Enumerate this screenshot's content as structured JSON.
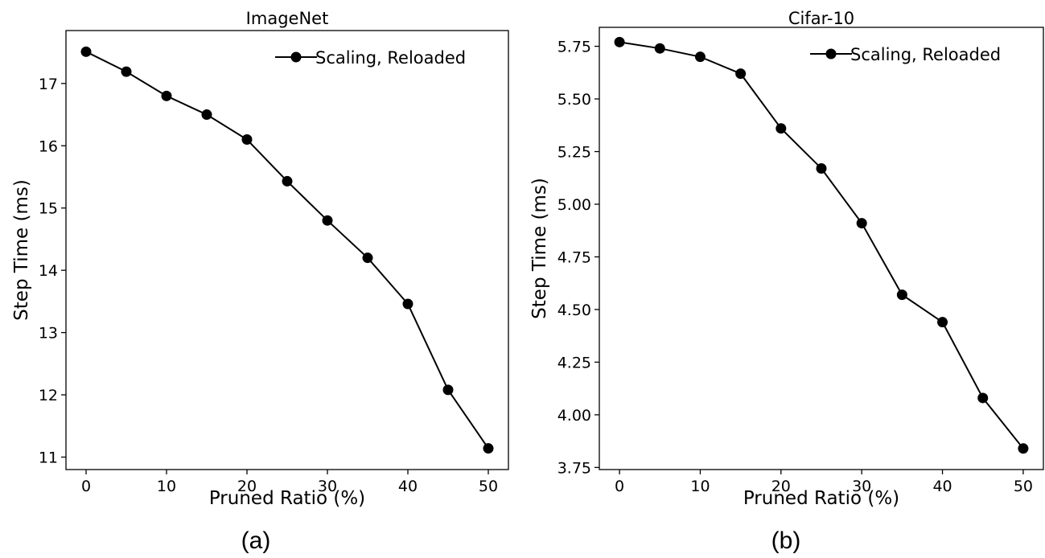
{
  "chart_data": [
    {
      "type": "line",
      "title": "ImageNet",
      "caption": "(a)",
      "xlabel": "Pruned Ratio (%)",
      "ylabel": "Step Time (ms)",
      "xlim": [
        -2.5,
        52.5
      ],
      "ylim": [
        10.8,
        17.85
      ],
      "xticks": [
        0,
        10,
        20,
        30,
        40,
        50
      ],
      "yticks": [
        11,
        12,
        13,
        14,
        15,
        16,
        17
      ],
      "ytick_labels": [
        "11",
        "12",
        "13",
        "14",
        "15",
        "16",
        "17"
      ],
      "legend_position": "top-right",
      "series": [
        {
          "name": "Scaling, Reloaded",
          "color": "#000000",
          "marker": "circle",
          "x": [
            0,
            5,
            10,
            15,
            20,
            25,
            30,
            35,
            40,
            45,
            50
          ],
          "values": [
            17.51,
            17.19,
            16.8,
            16.5,
            16.1,
            15.43,
            14.8,
            14.2,
            13.46,
            12.08,
            11.14
          ]
        }
      ]
    },
    {
      "type": "line",
      "title": "Cifar-10",
      "caption": "(b)",
      "xlabel": "Pruned Ratio (%)",
      "ylabel": "Step Time (ms)",
      "xlim": [
        -2.5,
        52.5
      ],
      "ylim": [
        3.74,
        5.84
      ],
      "xticks": [
        0,
        10,
        20,
        30,
        40,
        50
      ],
      "yticks": [
        3.75,
        4.0,
        4.25,
        4.5,
        4.75,
        5.0,
        5.25,
        5.5,
        5.75
      ],
      "ytick_labels": [
        "3.75",
        "4.00",
        "4.25",
        "4.50",
        "4.75",
        "5.00",
        "5.25",
        "5.50",
        "5.75"
      ],
      "legend_position": "top-right",
      "series": [
        {
          "name": "Scaling, Reloaded",
          "color": "#000000",
          "marker": "circle",
          "x": [
            0,
            5,
            10,
            15,
            20,
            25,
            30,
            35,
            40,
            45,
            50
          ],
          "values": [
            5.77,
            5.74,
            5.7,
            5.62,
            5.36,
            5.17,
            4.91,
            4.57,
            4.44,
            4.08,
            3.84
          ]
        }
      ]
    }
  ]
}
